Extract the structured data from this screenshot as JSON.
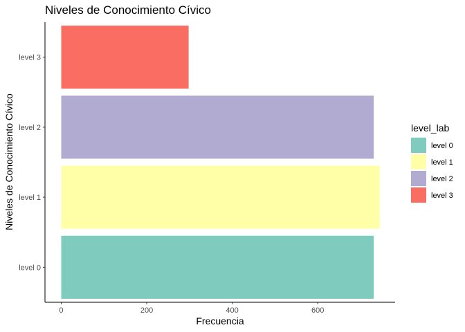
{
  "chart_data": {
    "type": "bar",
    "orientation": "horizontal",
    "title": "Niveles de Conocimiento Cívico",
    "xlabel": "Frecuencia",
    "ylabel": "Niveles de Conocimiento Cívico",
    "categories": [
      "level 0",
      "level 1",
      "level 2",
      "level 3"
    ],
    "values": [
      731,
      745,
      731,
      298
    ],
    "colors": [
      "#7fcbbd",
      "#ffffa8",
      "#b1abd1",
      "#f96d63"
    ],
    "xlim": [
      -38,
      781
    ],
    "xticks": [
      0,
      200,
      400,
      600
    ],
    "xtick_labels": [
      "0",
      "200",
      "400",
      "600"
    ],
    "grid": false,
    "legend": {
      "title": "level_lab",
      "position": "right",
      "entries": [
        "level 0",
        "level 1",
        "level 2",
        "level 3"
      ]
    }
  }
}
